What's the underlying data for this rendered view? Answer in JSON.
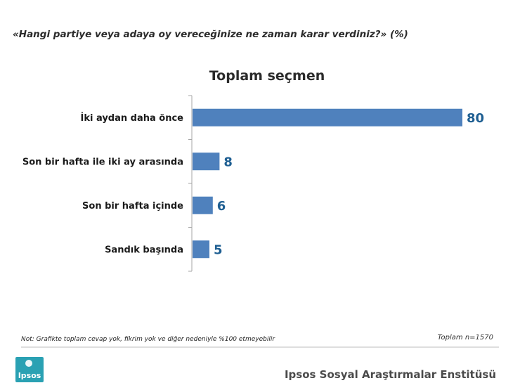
{
  "header": {
    "question": "«Hangi partiye veya adaya oy vereceğinize ne zaman karar verdiniz?» (%)"
  },
  "chart_data": {
    "type": "bar",
    "orientation": "horizontal",
    "title": "Toplam seçmen",
    "categories": [
      "İki aydan daha önce",
      "Son bir hafta ile iki ay arasında",
      "Son bir hafta içinde",
      "Sandık başında"
    ],
    "values": [
      80,
      8,
      6,
      5
    ],
    "xlim": [
      0,
      100
    ],
    "grid": false,
    "bar_color": "#4f81bd",
    "label_color": "#1f5f92"
  },
  "note": "Not: Grafikte toplam cevap yok, fikrim yok ve diğer nedeniyle %100 etmeyebilir",
  "total": "Toplam n=1570",
  "logo": {
    "text": "Ipsos",
    "color": "#2aa1b3"
  },
  "footer": {
    "institute": "Ipsos Sosyal Araştırmalar Enstitüsü"
  }
}
